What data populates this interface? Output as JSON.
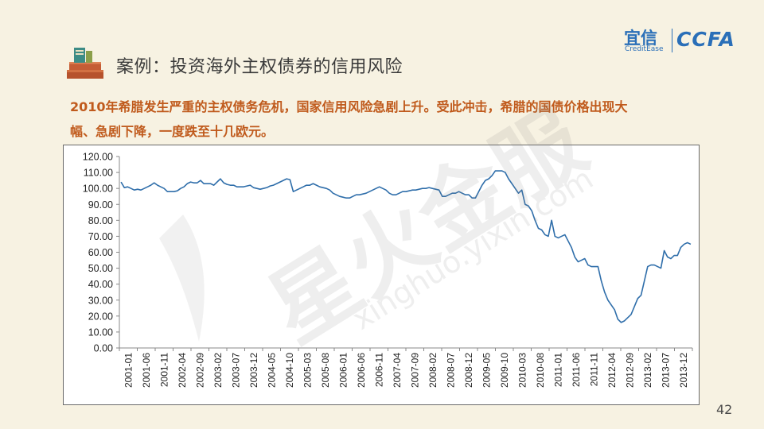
{
  "header": {
    "title": "案例：投资海外主权债券的信用风险",
    "logo": {
      "cn": "宜信",
      "en": "CreditEase",
      "brand": "CCFA"
    },
    "subtitle_line1": "2010年希腊发生严重的主权债务危机，国家信用风险急剧上升。受此冲击，希腊的国债价格出现大",
    "subtitle_line2": "幅、急剧下降，一度跌至十几欧元。"
  },
  "watermark": {
    "cn": "星火金服",
    "en": "xinghuo.yixin.com"
  },
  "page_number": "42",
  "colors": {
    "line": "#2f6eaa",
    "subtitle": "#c05a1c",
    "brand": "#2a6fb8",
    "background": "#f7f2e2"
  },
  "chart_data": {
    "type": "line",
    "title": "",
    "xlabel": "",
    "ylabel": "",
    "ylim": [
      0,
      120
    ],
    "yticks": [
      "0.00",
      "10.00",
      "20.00",
      "30.00",
      "40.00",
      "50.00",
      "60.00",
      "70.00",
      "80.00",
      "90.00",
      "100.00",
      "110.00",
      "120.00"
    ],
    "xtick_labels": [
      "2001-01",
      "2001-06",
      "2001-11",
      "2002-04",
      "2002-09",
      "2003-02",
      "2003-07",
      "2003-12",
      "2004-05",
      "2004-10",
      "2005-03",
      "2005-08",
      "2006-01",
      "2006-06",
      "2006-11",
      "2007-04",
      "2007-09",
      "2008-02",
      "2008-07",
      "2008-12",
      "2009-05",
      "2009-10",
      "2010-03",
      "2010-08",
      "2011-01",
      "2011-06",
      "2011-11",
      "2012-04",
      "2012-09",
      "2013-02",
      "2013-07",
      "2013-12"
    ],
    "grid": false,
    "legend": "none",
    "series": [
      {
        "values": [
          104,
          100.5,
          101,
          100,
          99,
          99.5,
          99,
          100,
          101,
          102,
          103.5,
          102,
          101,
          100,
          98,
          98,
          98,
          98.5,
          100,
          101,
          103,
          104,
          103.5,
          103.5,
          105,
          103,
          103,
          103,
          102,
          104,
          106,
          103.5,
          102.5,
          102,
          102,
          101,
          101,
          101,
          101.5,
          102,
          100.5,
          100,
          99.5,
          100,
          100.5,
          101.5,
          102,
          103,
          104,
          105,
          106,
          105.5,
          98,
          99,
          100,
          101,
          102,
          102,
          103,
          102,
          101,
          100.5,
          100,
          99,
          97,
          96,
          95,
          94.5,
          94,
          94,
          95,
          96,
          96,
          96.5,
          97,
          98,
          99,
          100,
          101,
          100,
          99,
          97,
          96,
          96,
          97,
          98,
          98,
          98.5,
          99,
          99,
          99.5,
          100,
          100,
          100.5,
          100,
          99.5,
          99,
          95,
          95,
          96,
          97,
          97,
          98,
          97,
          96,
          96,
          94,
          94,
          98,
          102,
          105,
          106,
          108,
          111,
          111,
          111,
          110,
          106,
          103,
          100,
          97,
          99,
          90,
          89,
          86,
          80,
          75,
          74,
          71,
          70,
          80,
          70,
          69,
          70,
          71,
          67,
          63,
          57,
          54,
          55,
          56,
          52,
          51,
          51,
          51,
          42,
          35,
          30,
          27,
          24,
          18,
          16,
          17,
          19,
          21,
          26,
          31,
          33,
          42,
          51,
          52,
          52,
          51,
          50,
          61,
          57,
          56,
          58,
          58,
          63,
          65,
          66,
          65
        ]
      }
    ]
  }
}
